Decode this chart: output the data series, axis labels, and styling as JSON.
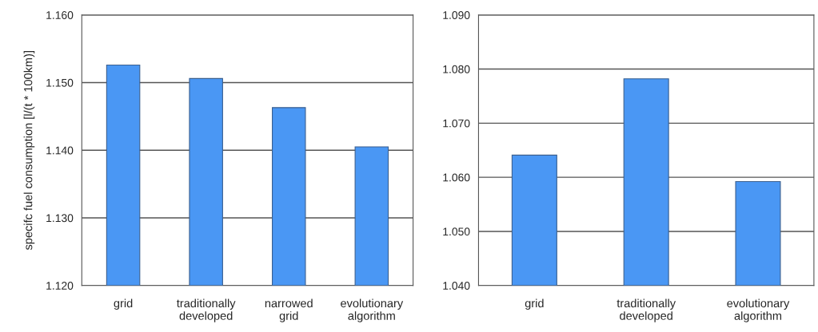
{
  "chart_data": [
    {
      "type": "bar",
      "ylabel": "specifc fuel consumption [l/(t * 100km)]",
      "categories": [
        "grid",
        "traditionally\ndeveloped",
        "narrowed\ngrid",
        "evolutionary\nalgorithm"
      ],
      "values": [
        1.1526,
        1.1506,
        1.1463,
        1.1405
      ],
      "color": "#4a97f4",
      "ylim": [
        1.12,
        1.16
      ],
      "yticks": [
        {
          "value": 1.12,
          "label": "1.120"
        },
        {
          "value": 1.13,
          "label": "1.130"
        },
        {
          "value": 1.14,
          "label": "1.140"
        },
        {
          "value": 1.15,
          "label": "1.150"
        },
        {
          "value": 1.16,
          "label": "1.160"
        }
      ],
      "grid": "y"
    },
    {
      "type": "bar",
      "categories": [
        "grid",
        "traditionally\ndeveloped",
        "evolutionary\nalgorithm"
      ],
      "values": [
        1.0641,
        1.0782,
        1.0592
      ],
      "color": "#4a97f4",
      "ylim": [
        1.04,
        1.09
      ],
      "yticks": [
        {
          "value": 1.04,
          "label": "1.040"
        },
        {
          "value": 1.05,
          "label": "1.050"
        },
        {
          "value": 1.06,
          "label": "1.060"
        },
        {
          "value": 1.07,
          "label": "1.070"
        },
        {
          "value": 1.08,
          "label": "1.080"
        },
        {
          "value": 1.09,
          "label": "1.090"
        }
      ],
      "grid": "y"
    }
  ]
}
